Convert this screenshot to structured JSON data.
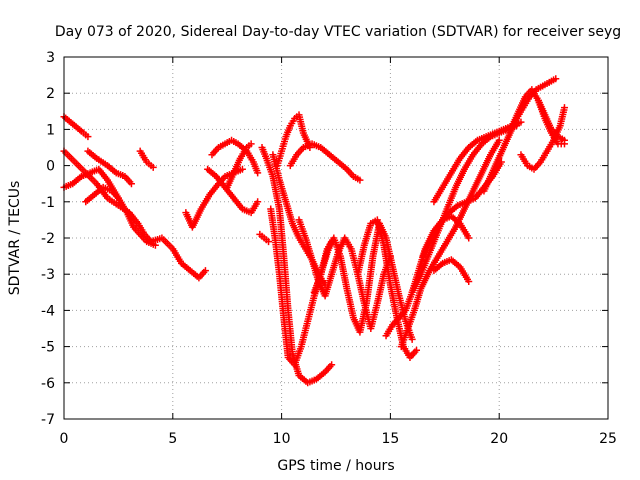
{
  "chart_data": {
    "type": "scatter",
    "title": "Day 073 of 2020, Sidereal Day-to-day VTEC variation (SDTVAR) for receiver seyg",
    "xlabel": "GPS time / hours",
    "ylabel": "SDTVAR / TECUs",
    "xlim": [
      0,
      25
    ],
    "ylim": [
      -7,
      3
    ],
    "x_ticks": [
      0,
      5,
      10,
      15,
      20,
      25
    ],
    "y_ticks": [
      -7,
      -6,
      -5,
      -4,
      -3,
      -2,
      -1,
      0,
      1,
      2,
      3
    ],
    "grid": true,
    "marker": "+",
    "color": "#ff0000",
    "series": [
      {
        "x": [
          0.0,
          0.4,
          0.8,
          1.1
        ],
        "y": [
          1.35,
          1.15,
          0.95,
          0.8
        ]
      },
      {
        "x": [
          0.0,
          0.5,
          1.0,
          1.5,
          2.0,
          2.5,
          3.0,
          3.4,
          3.7,
          4.0,
          4.5,
          5.0,
          5.4,
          5.8,
          6.2,
          6.5
        ],
        "y": [
          0.4,
          0.1,
          -0.2,
          -0.5,
          -0.9,
          -1.1,
          -1.3,
          -1.6,
          -1.9,
          -2.1,
          -2.0,
          -2.3,
          -2.7,
          -2.9,
          -3.1,
          -2.9
        ]
      },
      {
        "x": [
          0.0,
          0.4,
          0.8,
          1.2,
          1.6,
          2.0,
          2.5,
          2.9,
          3.2,
          3.5,
          3.8,
          4.2
        ],
        "y": [
          -0.6,
          -0.5,
          -0.3,
          -0.2,
          -0.1,
          -0.4,
          -0.9,
          -1.3,
          -1.7,
          -1.9,
          -2.1,
          -2.2
        ]
      },
      {
        "x": [
          1.1,
          1.5,
          2.0,
          2.4,
          2.8,
          3.1
        ],
        "y": [
          0.4,
          0.2,
          0.0,
          -0.2,
          -0.3,
          -0.5
        ]
      },
      {
        "x": [
          1.0,
          1.4,
          1.8,
          2.2,
          2.5
        ],
        "y": [
          -1.0,
          -0.8,
          -0.6,
          -0.7,
          -0.9
        ]
      },
      {
        "x": [
          3.5,
          3.8,
          4.1
        ],
        "y": [
          0.4,
          0.1,
          -0.05
        ]
      },
      {
        "x": [
          5.6,
          5.9,
          6.3,
          6.7,
          7.1,
          7.4,
          7.8,
          8.2
        ],
        "y": [
          -1.3,
          -1.7,
          -1.2,
          -0.8,
          -0.5,
          -0.3,
          -0.2,
          -0.1
        ]
      },
      {
        "x": [
          6.6,
          7.0,
          7.4,
          7.8,
          8.2,
          8.6,
          8.9
        ],
        "y": [
          -0.1,
          -0.3,
          -0.6,
          -0.9,
          -1.2,
          -1.3,
          -1.0
        ]
      },
      {
        "x": [
          6.8,
          7.1,
          7.4,
          7.7,
          8.0,
          8.4,
          8.7,
          8.9
        ],
        "y": [
          0.3,
          0.5,
          0.6,
          0.7,
          0.6,
          0.4,
          0.1,
          -0.2
        ]
      },
      {
        "x": [
          7.5,
          7.8,
          8.1,
          8.4,
          8.6
        ],
        "y": [
          -0.6,
          -0.2,
          0.2,
          0.5,
          0.6
        ]
      },
      {
        "x": [
          9.1,
          9.3,
          9.6,
          9.9,
          10.1,
          10.3,
          10.5,
          10.8,
          11.2,
          11.6,
          12.0,
          12.3
        ],
        "y": [
          0.5,
          0.2,
          -0.3,
          -1.2,
          -2.5,
          -4.0,
          -5.2,
          -5.8,
          -6.0,
          -5.9,
          -5.7,
          -5.5
        ]
      },
      {
        "x": [
          9.0,
          9.2,
          9.4
        ],
        "y": [
          -1.9,
          -2.0,
          -2.1
        ]
      },
      {
        "x": [
          9.5,
          9.7,
          9.9,
          10.1,
          10.3,
          10.6,
          10.9,
          11.2,
          11.5,
          11.8,
          12.1,
          12.3
        ],
        "y": [
          -1.2,
          -2.0,
          -3.0,
          -4.2,
          -5.3,
          -5.5,
          -5.0,
          -4.3,
          -3.6,
          -3.0,
          -2.4,
          -2.1
        ]
      },
      {
        "x": [
          9.8,
          10.0,
          10.2,
          10.4,
          10.6,
          10.8,
          11.0,
          11.3
        ],
        "y": [
          0.0,
          0.4,
          0.8,
          1.1,
          1.3,
          1.4,
          0.9,
          0.5
        ]
      },
      {
        "x": [
          10.4,
          10.7,
          11.0,
          11.4,
          11.8,
          12.2,
          12.6,
          13.0,
          13.3,
          13.6
        ],
        "y": [
          0.0,
          0.3,
          0.5,
          0.6,
          0.5,
          0.3,
          0.1,
          -0.1,
          -0.3,
          -0.4
        ]
      },
      {
        "x": [
          9.6,
          9.9,
          10.2,
          10.5,
          10.8,
          11.1,
          11.4,
          11.7,
          12.0
        ],
        "y": [
          0.3,
          -0.4,
          -1.0,
          -1.6,
          -2.0,
          -2.3,
          -2.6,
          -3.0,
          -3.3
        ]
      },
      {
        "x": [
          10.8,
          11.1,
          11.4,
          11.7,
          12.0,
          12.3,
          12.6,
          12.9,
          13.2,
          13.5,
          13.8,
          14.1,
          14.4,
          14.7,
          15.0
        ],
        "y": [
          -1.5,
          -2.0,
          -2.6,
          -3.2,
          -3.6,
          -3.0,
          -2.4,
          -2.0,
          -2.3,
          -3.0,
          -3.8,
          -4.5,
          -3.8,
          -3.0,
          -2.5
        ]
      },
      {
        "x": [
          11.5,
          11.8,
          12.1,
          12.4,
          12.7,
          13.0,
          13.3,
          13.6,
          13.9,
          14.2,
          14.5,
          14.8,
          15.1,
          15.4,
          15.7,
          16.0
        ],
        "y": [
          -3.5,
          -3.0,
          -2.3,
          -2.0,
          -2.5,
          -3.4,
          -4.2,
          -4.6,
          -3.8,
          -2.5,
          -1.6,
          -2.0,
          -2.8,
          -3.6,
          -4.3,
          -4.8
        ]
      },
      {
        "x": [
          13.5,
          13.8,
          14.1,
          14.4,
          14.7,
          15.0,
          15.3,
          15.6,
          15.9,
          16.2
        ],
        "y": [
          -3.0,
          -2.2,
          -1.6,
          -1.5,
          -2.2,
          -3.3,
          -4.2,
          -5.0,
          -5.3,
          -5.1
        ]
      },
      {
        "x": [
          14.8,
          15.1,
          15.4,
          15.7,
          16.0,
          16.3,
          16.6,
          17.0,
          17.4,
          17.8,
          18.2,
          18.6
        ],
        "y": [
          -4.7,
          -4.4,
          -4.2,
          -4.0,
          -3.5,
          -2.9,
          -2.3,
          -1.8,
          -1.5,
          -1.4,
          -1.6,
          -2.0
        ]
      },
      {
        "x": [
          15.5,
          15.8,
          16.1,
          16.4,
          16.8,
          17.2,
          17.6,
          18.0,
          18.4,
          18.8,
          19.2,
          19.6,
          20.0
        ],
        "y": [
          -5.0,
          -4.5,
          -4.0,
          -3.4,
          -2.9,
          -2.5,
          -2.1,
          -1.7,
          -1.2,
          -0.7,
          -0.2,
          0.3,
          0.7
        ]
      },
      {
        "x": [
          16.0,
          16.4,
          16.8,
          17.2,
          17.6,
          18.0,
          18.4,
          18.8,
          19.2,
          19.6,
          20.0,
          20.4,
          20.8
        ],
        "y": [
          -3.5,
          -3.0,
          -2.4,
          -1.8,
          -1.2,
          -0.6,
          -0.1,
          0.3,
          0.6,
          0.8,
          0.9,
          1.0,
          1.1
        ]
      },
      {
        "x": [
          17.0,
          17.4,
          17.8,
          18.2,
          18.6,
          19.0,
          19.4,
          19.8,
          20.2,
          20.6,
          21.0
        ],
        "y": [
          -1.0,
          -0.6,
          -0.2,
          0.2,
          0.5,
          0.7,
          0.8,
          0.9,
          1.0,
          1.1,
          1.2
        ]
      },
      {
        "x": [
          16.5,
          16.9,
          17.3,
          17.7,
          18.1,
          18.5,
          18.9,
          19.3,
          19.7,
          20.1
        ],
        "y": [
          -2.5,
          -2.0,
          -1.6,
          -1.3,
          -1.1,
          -1.0,
          -0.9,
          -0.6,
          -0.3,
          0.1
        ]
      },
      {
        "x": [
          17.0,
          17.4,
          17.8,
          18.2,
          18.6
        ],
        "y": [
          -2.9,
          -2.7,
          -2.6,
          -2.8,
          -3.2
        ]
      },
      {
        "x": [
          19.3,
          19.6,
          19.9,
          20.2,
          20.5,
          20.8,
          21.1,
          21.4,
          21.7,
          22.0,
          22.3,
          22.6
        ],
        "y": [
          -0.7,
          -0.3,
          0.1,
          0.5,
          0.9,
          1.3,
          1.6,
          1.9,
          2.1,
          2.2,
          2.3,
          2.4
        ]
      },
      {
        "x": [
          20.6,
          20.9,
          21.2,
          21.5,
          21.8,
          22.1,
          22.4,
          22.7,
          23.0
        ],
        "y": [
          1.1,
          1.5,
          1.9,
          2.1,
          1.8,
          1.4,
          1.0,
          0.8,
          0.7
        ]
      },
      {
        "x": [
          21.0,
          21.3,
          21.6,
          21.9,
          22.2,
          22.5,
          22.8,
          23.0
        ],
        "y": [
          0.3,
          0.0,
          -0.1,
          0.1,
          0.4,
          0.7,
          1.1,
          1.6
        ]
      },
      {
        "x": [
          21.8,
          22.1,
          22.4,
          22.7,
          23.0
        ],
        "y": [
          1.8,
          1.3,
          0.9,
          0.6,
          0.6
        ]
      }
    ]
  }
}
